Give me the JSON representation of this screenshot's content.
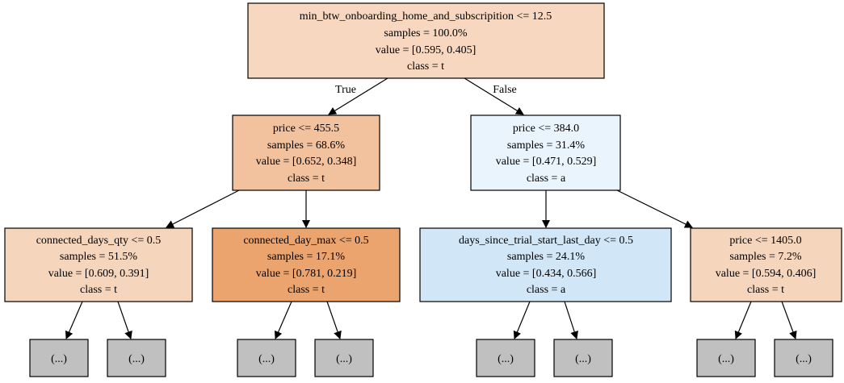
{
  "tree": {
    "colors": {
      "stroke": "#000000",
      "root": "#f7d7bf",
      "left": "#f2c19e",
      "right": "#eaf4fc",
      "ll": "#f6d5bd",
      "lr": "#eca46e",
      "rl": "#d1e6f7",
      "rr": "#f6d5bd",
      "elided": "#c0c0c0"
    },
    "nodes": {
      "root": {
        "split": "min_btw_onboarding_home_and_subscripition <= 12.5",
        "samples": "samples = 100.0%",
        "value": "value = [0.595, 0.405]",
        "class": "class = t"
      },
      "left": {
        "split": "price <= 455.5",
        "samples": "samples = 68.6%",
        "value": "value = [0.652, 0.348]",
        "class": "class = t"
      },
      "right": {
        "split": "price <= 384.0",
        "samples": "samples = 31.4%",
        "value": "value = [0.471, 0.529]",
        "class": "class = a"
      },
      "ll": {
        "split": "connected_days_qty <= 0.5",
        "samples": "samples = 51.5%",
        "value": "value = [0.609, 0.391]",
        "class": "class = t"
      },
      "lr": {
        "split": "connected_day_max <= 0.5",
        "samples": "samples = 17.1%",
        "value": "value = [0.781, 0.219]",
        "class": "class = t"
      },
      "rl": {
        "split": "days_since_trial_start_last_day <= 0.5",
        "samples": "samples = 24.1%",
        "value": "value = [0.434, 0.566]",
        "class": "class = a"
      },
      "rr": {
        "split": "price <= 1405.0",
        "samples": "samples = 7.2%",
        "value": "value = [0.594, 0.406]",
        "class": "class = t"
      }
    },
    "edge_labels": {
      "true": "True",
      "false": "False"
    },
    "elided_label": "(...)"
  }
}
